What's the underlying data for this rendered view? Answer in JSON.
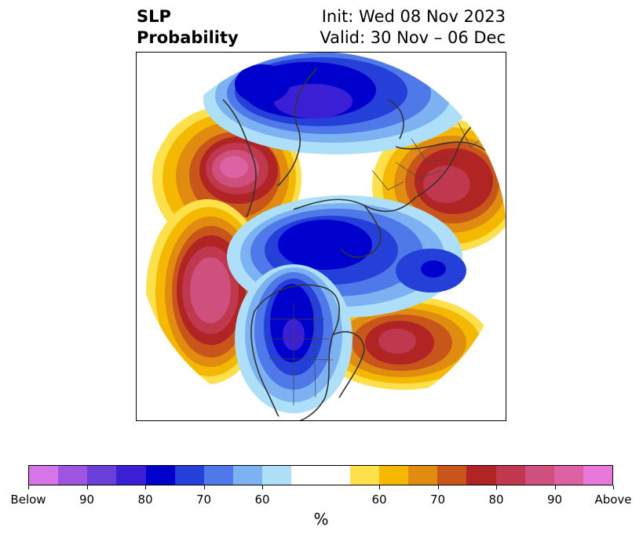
{
  "title": {
    "left_line1": "SLP",
    "left_line2": "Probability",
    "right_line1": "Init: Wed 08 Nov 2023",
    "right_line2": "Valid: 30 Nov – 06 Dec"
  },
  "colorbar": {
    "unit": "%",
    "colors": [
      "#d575e8",
      "#9d55e0",
      "#6a3fd8",
      "#3b1fd4",
      "#0000cc",
      "#2440d8",
      "#4f78e8",
      "#7db2f2",
      "#ade0f8",
      "#ffffff",
      "#ffffff",
      "#fde04a",
      "#f5b800",
      "#e08c10",
      "#c8561a",
      "#b02424",
      "#c0384e",
      "#cf507c",
      "#dc62a4",
      "#e878dc"
    ],
    "tick_labels": [
      "Below",
      "90",
      "80",
      "70",
      "60",
      "60",
      "70",
      "80",
      "90",
      "Above"
    ]
  },
  "map": {
    "projection": "north-polar-stereographic",
    "colors": {
      "above_extreme": "#dc62a4",
      "above_high": "#b02424",
      "above_mid": "#c8561a",
      "above_low": "#e08c10",
      "above_min": "#f5b800",
      "above_edge": "#fde04a",
      "below_extreme": "#3b1fd4",
      "below_high": "#0000cc",
      "below_mid": "#2440d8",
      "below_low": "#4f78e8",
      "below_min": "#7db2f2",
      "below_edge": "#ade0f8",
      "coastline": "#333333"
    }
  }
}
